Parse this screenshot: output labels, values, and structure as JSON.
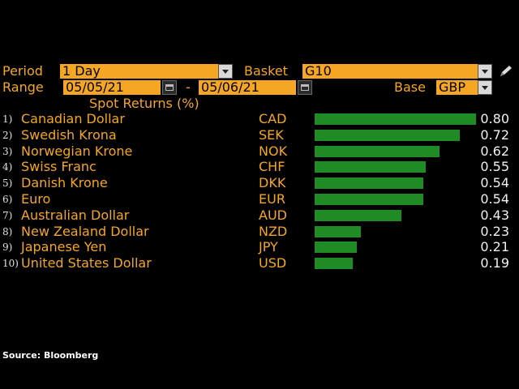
{
  "controls": {
    "period_label": "Period",
    "period_value": "1 Day",
    "basket_label": "Basket",
    "basket_value": "G10",
    "range_label": "Range",
    "range_start": "05/05/21",
    "range_sep": "-",
    "range_end": "05/06/21",
    "base_label": "Base",
    "base_value": "GBP"
  },
  "chart_data": {
    "type": "bar",
    "title": "Spot Returns (%)",
    "orientation": "horizontal",
    "xlim": [
      0,
      0.8
    ],
    "rows": [
      {
        "rank": "1)",
        "name": "Canadian Dollar",
        "code": "CAD",
        "value": 0.8,
        "label": "0.80"
      },
      {
        "rank": "2)",
        "name": "Swedish Krona",
        "code": "SEK",
        "value": 0.72,
        "label": "0.72"
      },
      {
        "rank": "3)",
        "name": "Norwegian Krone",
        "code": "NOK",
        "value": 0.62,
        "label": "0.62"
      },
      {
        "rank": "4)",
        "name": "Swiss Franc",
        "code": "CHF",
        "value": 0.55,
        "label": "0.55"
      },
      {
        "rank": "5)",
        "name": "Danish Krone",
        "code": "DKK",
        "value": 0.54,
        "label": "0.54"
      },
      {
        "rank": "6)",
        "name": "Euro",
        "code": "EUR",
        "value": 0.54,
        "label": "0.54"
      },
      {
        "rank": "7)",
        "name": "Australian Dollar",
        "code": "AUD",
        "value": 0.43,
        "label": "0.43"
      },
      {
        "rank": "8)",
        "name": "New Zealand Dollar",
        "code": "NZD",
        "value": 0.23,
        "label": "0.23"
      },
      {
        "rank": "9)",
        "name": "Japanese Yen",
        "code": "JPY",
        "value": 0.21,
        "label": "0.21"
      },
      {
        "rank": "10)",
        "name": "United States Dollar",
        "code": "USD",
        "value": 0.19,
        "label": "0.19"
      }
    ],
    "bar_color": "#1f8b24"
  },
  "footer": {
    "source": "Source: Bloomberg"
  },
  "icons": {
    "edit": "pencil-icon"
  }
}
